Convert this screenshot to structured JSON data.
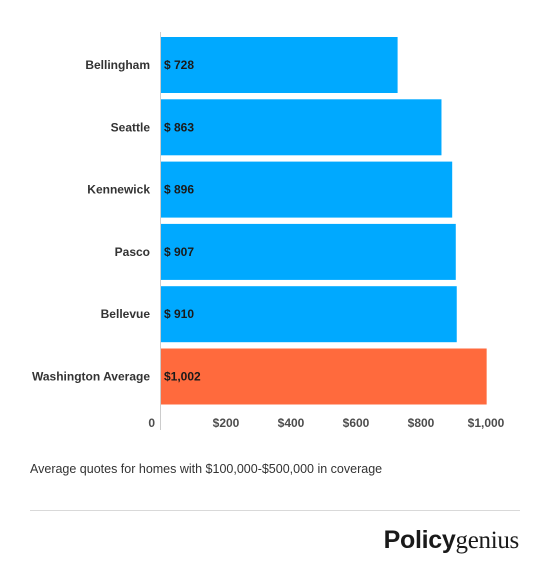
{
  "chart_data": {
    "type": "bar",
    "orientation": "horizontal",
    "categories": [
      "Bellingham",
      "Seattle",
      "Kennewick",
      "Pasco",
      "Bellevue",
      "Washington Average"
    ],
    "values": [
      728,
      863,
      896,
      907,
      910,
      1002
    ],
    "value_labels": [
      "$ 728",
      "$ 863",
      "$ 896",
      "$ 907",
      "$ 910",
      "$1,002"
    ],
    "bar_colors": [
      "#00a9ff",
      "#00a9ff",
      "#00a9ff",
      "#00a9ff",
      "#00a9ff",
      "#ff6a3d"
    ],
    "x_ticks": [
      0,
      200,
      400,
      600,
      800,
      1000
    ],
    "x_tick_labels": [
      "0",
      "$200",
      "$400",
      "$600",
      "$800",
      "$1,000"
    ],
    "xlim": [
      0,
      1100
    ],
    "title": "",
    "xlabel": "",
    "ylabel": "",
    "grid": false,
    "legend": "none"
  },
  "caption": "Average quotes for homes with $100,000-$500,000 in coverage",
  "logo": {
    "part1": "Policy",
    "part2": "genius"
  }
}
